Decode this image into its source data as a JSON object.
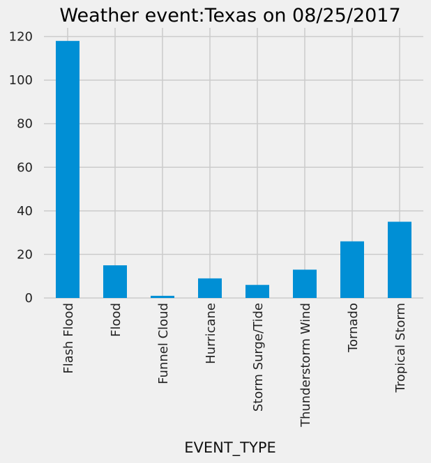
{
  "chart_data": {
    "type": "bar",
    "title": "Weather event:Texas on 08/25/2017",
    "xlabel": "EVENT_TYPE",
    "ylabel": "",
    "categories": [
      "Flash Flood",
      "Flood",
      "Funnel Cloud",
      "Hurricane",
      "Storm Surge/Tide",
      "Thunderstorm Wind",
      "Tornado",
      "Tropical Storm"
    ],
    "values": [
      118,
      15,
      1,
      9,
      6,
      13,
      26,
      35
    ],
    "ylim": [
      0,
      124
    ],
    "yticks": [
      0,
      20,
      40,
      60,
      80,
      100,
      120
    ],
    "grid": true,
    "legend": "none",
    "bar_color": "#008fd5",
    "background_color": "#f0f0f0",
    "grid_color": "#cbcbcb"
  }
}
